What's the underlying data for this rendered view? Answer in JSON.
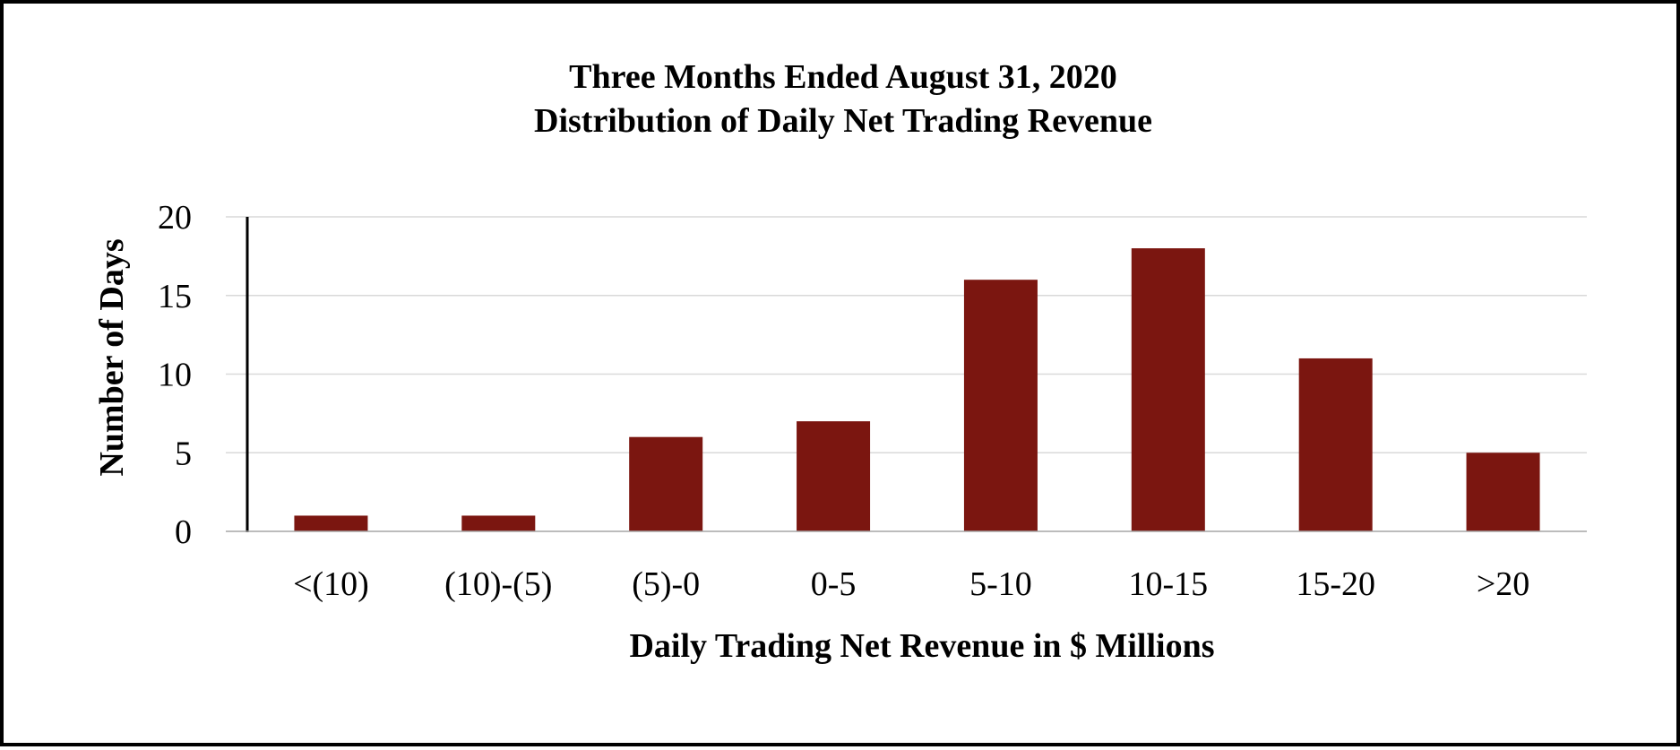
{
  "chart_data": {
    "type": "bar",
    "title": "Three Months Ended August 31, 2020",
    "subtitle": "Distribution of Daily Net Trading Revenue",
    "xlabel": "Daily Trading Net Revenue in $ Millions",
    "ylabel": "Number of Days",
    "categories": [
      "<(10)",
      "(10)-(5)",
      "(5)-0",
      "0-5",
      "5-10",
      "10-15",
      "15-20",
      ">20"
    ],
    "values": [
      1,
      1,
      6,
      7,
      16,
      18,
      11,
      5
    ],
    "ylim": [
      0,
      20
    ],
    "yticks": [
      "0",
      "5",
      "10",
      "15",
      "20"
    ],
    "grid": true,
    "legend": "none",
    "bar_color": "#7B1610",
    "grid_color": "#D9D9D9",
    "axis_color": "#000000"
  }
}
